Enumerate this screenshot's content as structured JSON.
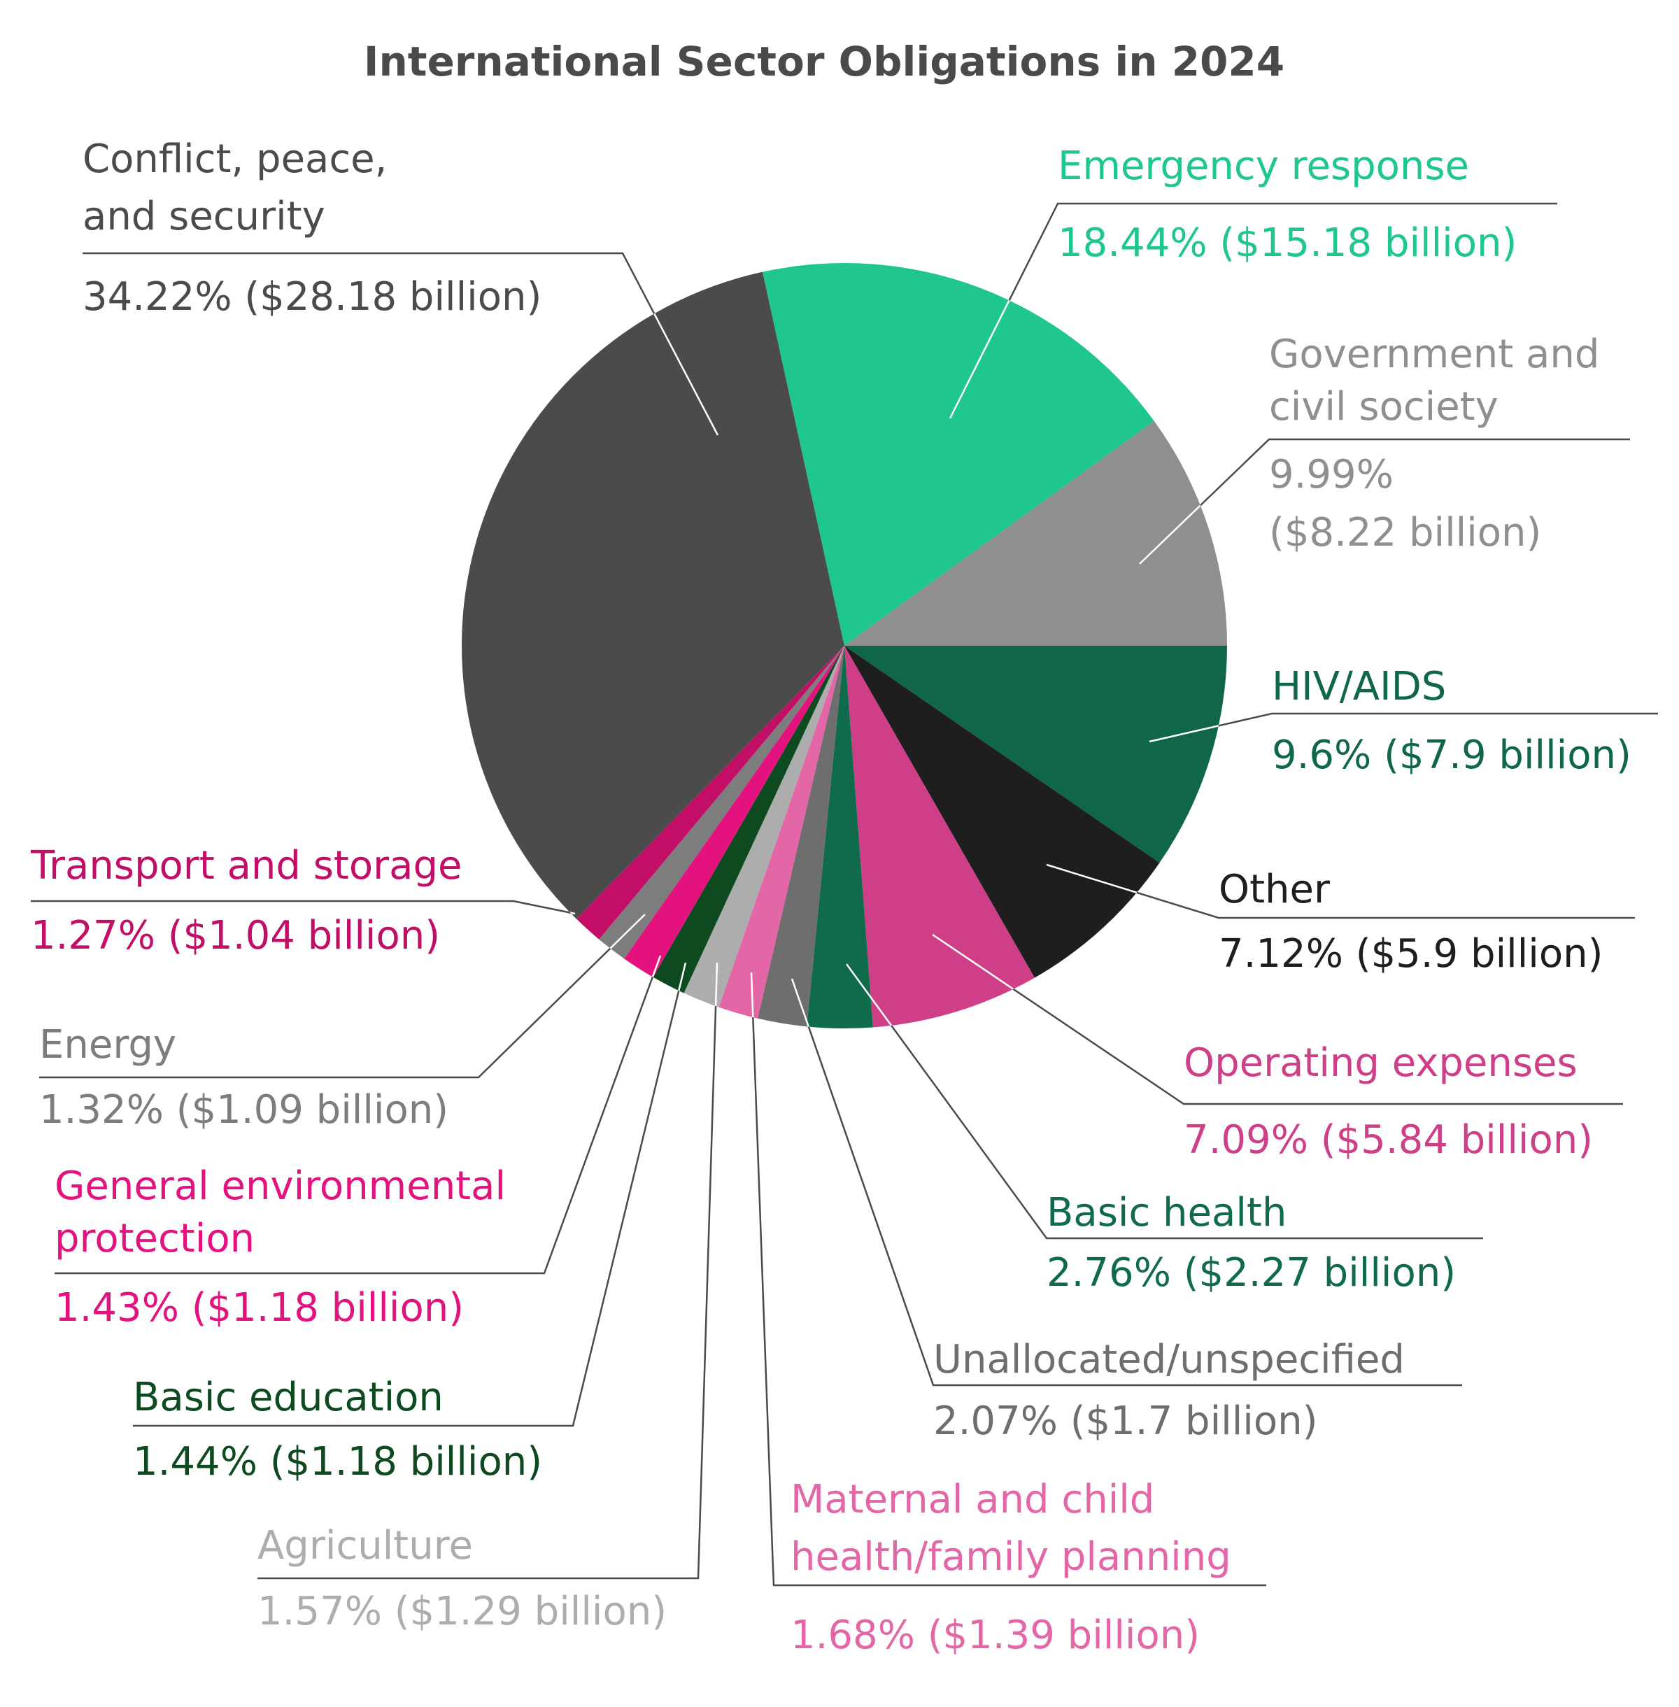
{
  "chart_data": {
    "type": "pie",
    "title": "International Sector Obligations in 2024",
    "slices": [
      {
        "label": "HIV/AIDS",
        "pct_text": "9.6% ($7.9 billion)",
        "value": 9.6,
        "billions": 7.9,
        "color": "#0f664a"
      },
      {
        "label": "Other",
        "pct_text": "7.12% ($5.9 billion)",
        "value": 7.12,
        "billions": 5.9,
        "color": "#1e1e1e"
      },
      {
        "label": "Operating expenses",
        "pct_text": "7.09% ($5.84 billion)",
        "value": 7.09,
        "billions": 5.84,
        "color": "#cf3f87"
      },
      {
        "label": "Basic health",
        "pct_text": "2.76% ($2.27 billion)",
        "value": 2.76,
        "billions": 2.27,
        "color": "#0f6b4c"
      },
      {
        "label": "Unallocated/unspecified",
        "pct_text": "2.07% ($1.7 billion)",
        "value": 2.07,
        "billions": 1.7,
        "color": "#6e6e6e"
      },
      {
        "label": "Maternal and child health/family planning",
        "pct_text": "1.68% ($1.39 billion)",
        "value": 1.68,
        "billions": 1.39,
        "color": "#e366a6"
      },
      {
        "label": "Agriculture",
        "pct_text": "1.57% ($1.29 billion)",
        "value": 1.57,
        "billions": 1.29,
        "color": "#adadad"
      },
      {
        "label": "Basic education",
        "pct_text": "1.44% ($1.18 billion)",
        "value": 1.44,
        "billions": 1.18,
        "color": "#0e4a1f"
      },
      {
        "label": "General environmental protection",
        "pct_text": "1.43% ($1.18 billion)",
        "value": 1.43,
        "billions": 1.18,
        "color": "#e3127e"
      },
      {
        "label": "Energy",
        "pct_text": "1.32% ($1.09 billion)",
        "value": 1.32,
        "billions": 1.09,
        "color": "#7d7d7d"
      },
      {
        "label": "Transport and storage",
        "pct_text": "1.27% ($1.04 billion)",
        "value": 1.27,
        "billions": 1.04,
        "color": "#c20e67"
      },
      {
        "label": "Conflict, peace, and security",
        "pct_text": "34.22% ($28.18 billion)",
        "value": 34.22,
        "billions": 28.18,
        "color": "#4b4b4b"
      },
      {
        "label": "Emergency response",
        "pct_text": "18.44% ($15.18 billion)",
        "value": 18.44,
        "billions": 15.18,
        "color": "#1fc68f"
      },
      {
        "label": "Government and civil society",
        "pct_text": "9.99% ($8.22 billion)",
        "value": 9.99,
        "billions": 8.22,
        "color": "#8f8f8f"
      }
    ],
    "label_colors": {
      "HIV/AIDS": "#0f664a",
      "Other": "#1e1e1e",
      "Operating expenses": "#cf3f87",
      "Basic health": "#0f6b4c",
      "Unallocated/unspecified": "#6e6e6e",
      "Maternal and child health/family planning": "#e366a6",
      "Agriculture": "#adadad",
      "Basic education": "#0e4a1f",
      "General environmental protection": "#e3127e",
      "Energy": "#7d7d7d",
      "Transport and storage": "#c20e67",
      "Conflict, peace, and security": "#4b4b4b",
      "Emergency response": "#1fc68f",
      "Government and civil society": "#8f8f8f"
    }
  }
}
